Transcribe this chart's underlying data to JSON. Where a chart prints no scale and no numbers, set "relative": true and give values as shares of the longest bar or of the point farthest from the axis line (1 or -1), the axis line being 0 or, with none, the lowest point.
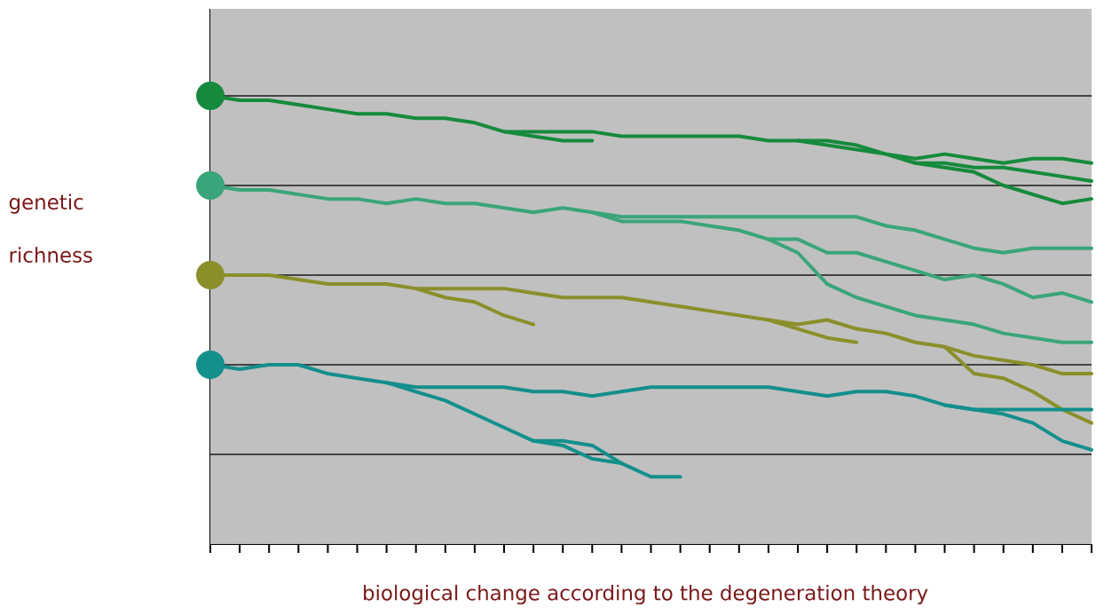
{
  "chart_data": {
    "type": "line",
    "relative": true,
    "xlabel": "biological change according to the degeneration theory",
    "ylabel": "genetic richness",
    "categories": [
      null,
      null,
      null,
      null,
      null,
      null,
      null,
      null,
      null,
      null,
      null,
      null,
      null,
      null,
      null,
      null,
      null,
      null,
      null,
      null,
      null,
      null,
      null,
      null,
      null,
      null,
      null,
      null,
      null,
      null,
      null
    ],
    "legend": false,
    "marker": "none",
    "ref_lines": [
      {
        "axis": "y",
        "value": 0.2,
        "color": "#1a1a1a"
      },
      {
        "axis": "y",
        "value": 0.4,
        "color": "#1a1a1a"
      },
      {
        "axis": "y",
        "value": 0.6,
        "color": "#1a1a1a"
      },
      {
        "axis": "y",
        "value": 0.8,
        "color": "#1a1a1a"
      },
      {
        "axis": "y",
        "value": 1.0,
        "color": "#1a1a1a"
      }
    ],
    "series": [
      {
        "color": "#168a3c",
        "values": [
          1.0,
          0.99,
          0.99,
          0.98,
          0.97,
          0.96,
          0.96,
          0.95,
          0.95,
          0.94,
          0.92,
          0.92,
          0.92,
          0.92,
          0.91,
          0.91,
          0.91,
          0.91,
          0.91,
          0.9,
          0.9,
          0.9,
          0.89,
          0.87,
          0.86,
          0.87,
          0.86,
          0.85,
          0.86,
          0.86,
          0.85
        ]
      },
      {
        "color": "#168a3c",
        "values": [
          null,
          null,
          null,
          null,
          null,
          null,
          null,
          null,
          null,
          null,
          null,
          null,
          null,
          null,
          null,
          null,
          null,
          null,
          null,
          null,
          0.9,
          0.89,
          0.88,
          0.87,
          0.85,
          0.84,
          0.83,
          0.8,
          0.78,
          0.76,
          0.77
        ]
      },
      {
        "color": "#168a3c",
        "values": [
          null,
          null,
          null,
          null,
          null,
          null,
          null,
          null,
          null,
          null,
          null,
          null,
          null,
          null,
          null,
          null,
          null,
          null,
          null,
          null,
          null,
          null,
          null,
          null,
          0.85,
          0.85,
          0.84,
          0.84,
          0.83,
          0.82,
          0.81
        ]
      },
      {
        "color": "#168a3c",
        "values": [
          null,
          null,
          null,
          null,
          null,
          null,
          null,
          null,
          null,
          null,
          0.92,
          0.91,
          0.9,
          0.9,
          null,
          null,
          null,
          null,
          null,
          null,
          null,
          null,
          null,
          null,
          null,
          null,
          null,
          null,
          null,
          null,
          null
        ]
      },
      {
        "color": "#3aa57a",
        "values": [
          0.8,
          0.79,
          0.79,
          0.78,
          0.77,
          0.77,
          0.76,
          0.77,
          0.76,
          0.76,
          0.75,
          0.74,
          0.75,
          0.74,
          0.73,
          0.73,
          0.73,
          0.73,
          0.73,
          0.73,
          0.73,
          0.73,
          0.73,
          0.71,
          0.7,
          0.68,
          0.66,
          0.65,
          0.66,
          0.66,
          0.66
        ]
      },
      {
        "color": "#3aa57a",
        "values": [
          null,
          null,
          null,
          null,
          null,
          null,
          null,
          null,
          null,
          null,
          null,
          null,
          null,
          0.74,
          0.72,
          0.72,
          0.72,
          0.71,
          0.7,
          0.68,
          0.68,
          0.65,
          0.65,
          0.63,
          0.61,
          0.59,
          0.6,
          0.58,
          0.55,
          0.56,
          0.54
        ]
      },
      {
        "color": "#3aa57a",
        "values": [
          null,
          null,
          null,
          null,
          null,
          null,
          null,
          null,
          null,
          null,
          null,
          null,
          null,
          null,
          null,
          null,
          null,
          null,
          null,
          0.68,
          0.65,
          0.58,
          0.55,
          0.53,
          0.51,
          0.5,
          0.49,
          0.47,
          0.46,
          0.45,
          0.45
        ]
      },
      {
        "color": "#8a8f2a",
        "values": [
          0.6,
          0.6,
          0.6,
          0.59,
          0.58,
          0.58,
          0.58,
          0.57,
          0.57,
          0.57,
          0.57,
          0.56,
          0.55,
          0.55,
          0.55,
          0.54,
          0.53,
          0.52,
          0.51,
          0.5,
          0.49,
          0.5,
          0.48,
          0.47,
          0.45,
          0.44,
          0.42,
          0.41,
          0.4,
          0.38,
          0.38
        ]
      },
      {
        "color": "#8a8f2a",
        "values": [
          null,
          null,
          null,
          null,
          null,
          null,
          null,
          null,
          null,
          null,
          null,
          null,
          null,
          null,
          null,
          null,
          null,
          null,
          null,
          null,
          null,
          null,
          null,
          null,
          null,
          0.44,
          0.38,
          0.37,
          0.34,
          0.3,
          0.27
        ]
      },
      {
        "color": "#8a8f2a",
        "values": [
          null,
          null,
          null,
          null,
          null,
          null,
          null,
          null,
          null,
          null,
          null,
          null,
          null,
          null,
          null,
          null,
          null,
          null,
          null,
          0.5,
          0.48,
          0.46,
          0.45,
          null,
          null,
          null,
          null,
          null,
          null,
          null,
          null
        ]
      },
      {
        "color": "#8a8f2a",
        "values": [
          null,
          null,
          null,
          null,
          null,
          null,
          null,
          0.57,
          0.55,
          0.54,
          0.51,
          0.49,
          null,
          null,
          null,
          null,
          null,
          null,
          null,
          null,
          null,
          null,
          null,
          null,
          null,
          null,
          null,
          null,
          null,
          null,
          null
        ]
      },
      {
        "color": "#138f8c",
        "values": [
          0.4,
          0.39,
          0.4,
          0.4,
          0.38,
          0.37,
          0.36,
          0.35,
          0.35,
          0.35,
          0.35,
          0.34,
          0.34,
          0.33,
          0.34,
          0.35,
          0.35,
          0.35,
          0.35,
          0.35,
          0.34,
          0.33,
          0.34,
          0.34,
          0.33,
          0.31,
          0.3,
          0.3,
          0.3,
          0.3,
          0.3
        ]
      },
      {
        "color": "#138f8c",
        "values": [
          null,
          null,
          null,
          null,
          null,
          null,
          null,
          null,
          null,
          null,
          null,
          null,
          null,
          null,
          null,
          null,
          null,
          null,
          null,
          null,
          null,
          null,
          null,
          null,
          null,
          0.31,
          0.3,
          0.29,
          0.27,
          0.23,
          0.21
        ]
      },
      {
        "color": "#138f8c",
        "values": [
          null,
          null,
          null,
          null,
          null,
          null,
          0.36,
          0.34,
          0.32,
          0.29,
          0.26,
          0.23,
          0.23,
          0.22,
          0.18,
          0.15,
          0.15,
          null,
          null,
          null,
          null,
          null,
          null,
          null,
          null,
          null,
          null,
          null,
          null,
          null,
          null
        ]
      },
      {
        "color": "#138f8c",
        "values": [
          null,
          null,
          null,
          null,
          null,
          null,
          null,
          null,
          null,
          null,
          null,
          0.23,
          0.22,
          0.19,
          0.18,
          null,
          null,
          null,
          null,
          null,
          null,
          null,
          null,
          null,
          null,
          null,
          null,
          null,
          null,
          null,
          null
        ]
      }
    ]
  }
}
